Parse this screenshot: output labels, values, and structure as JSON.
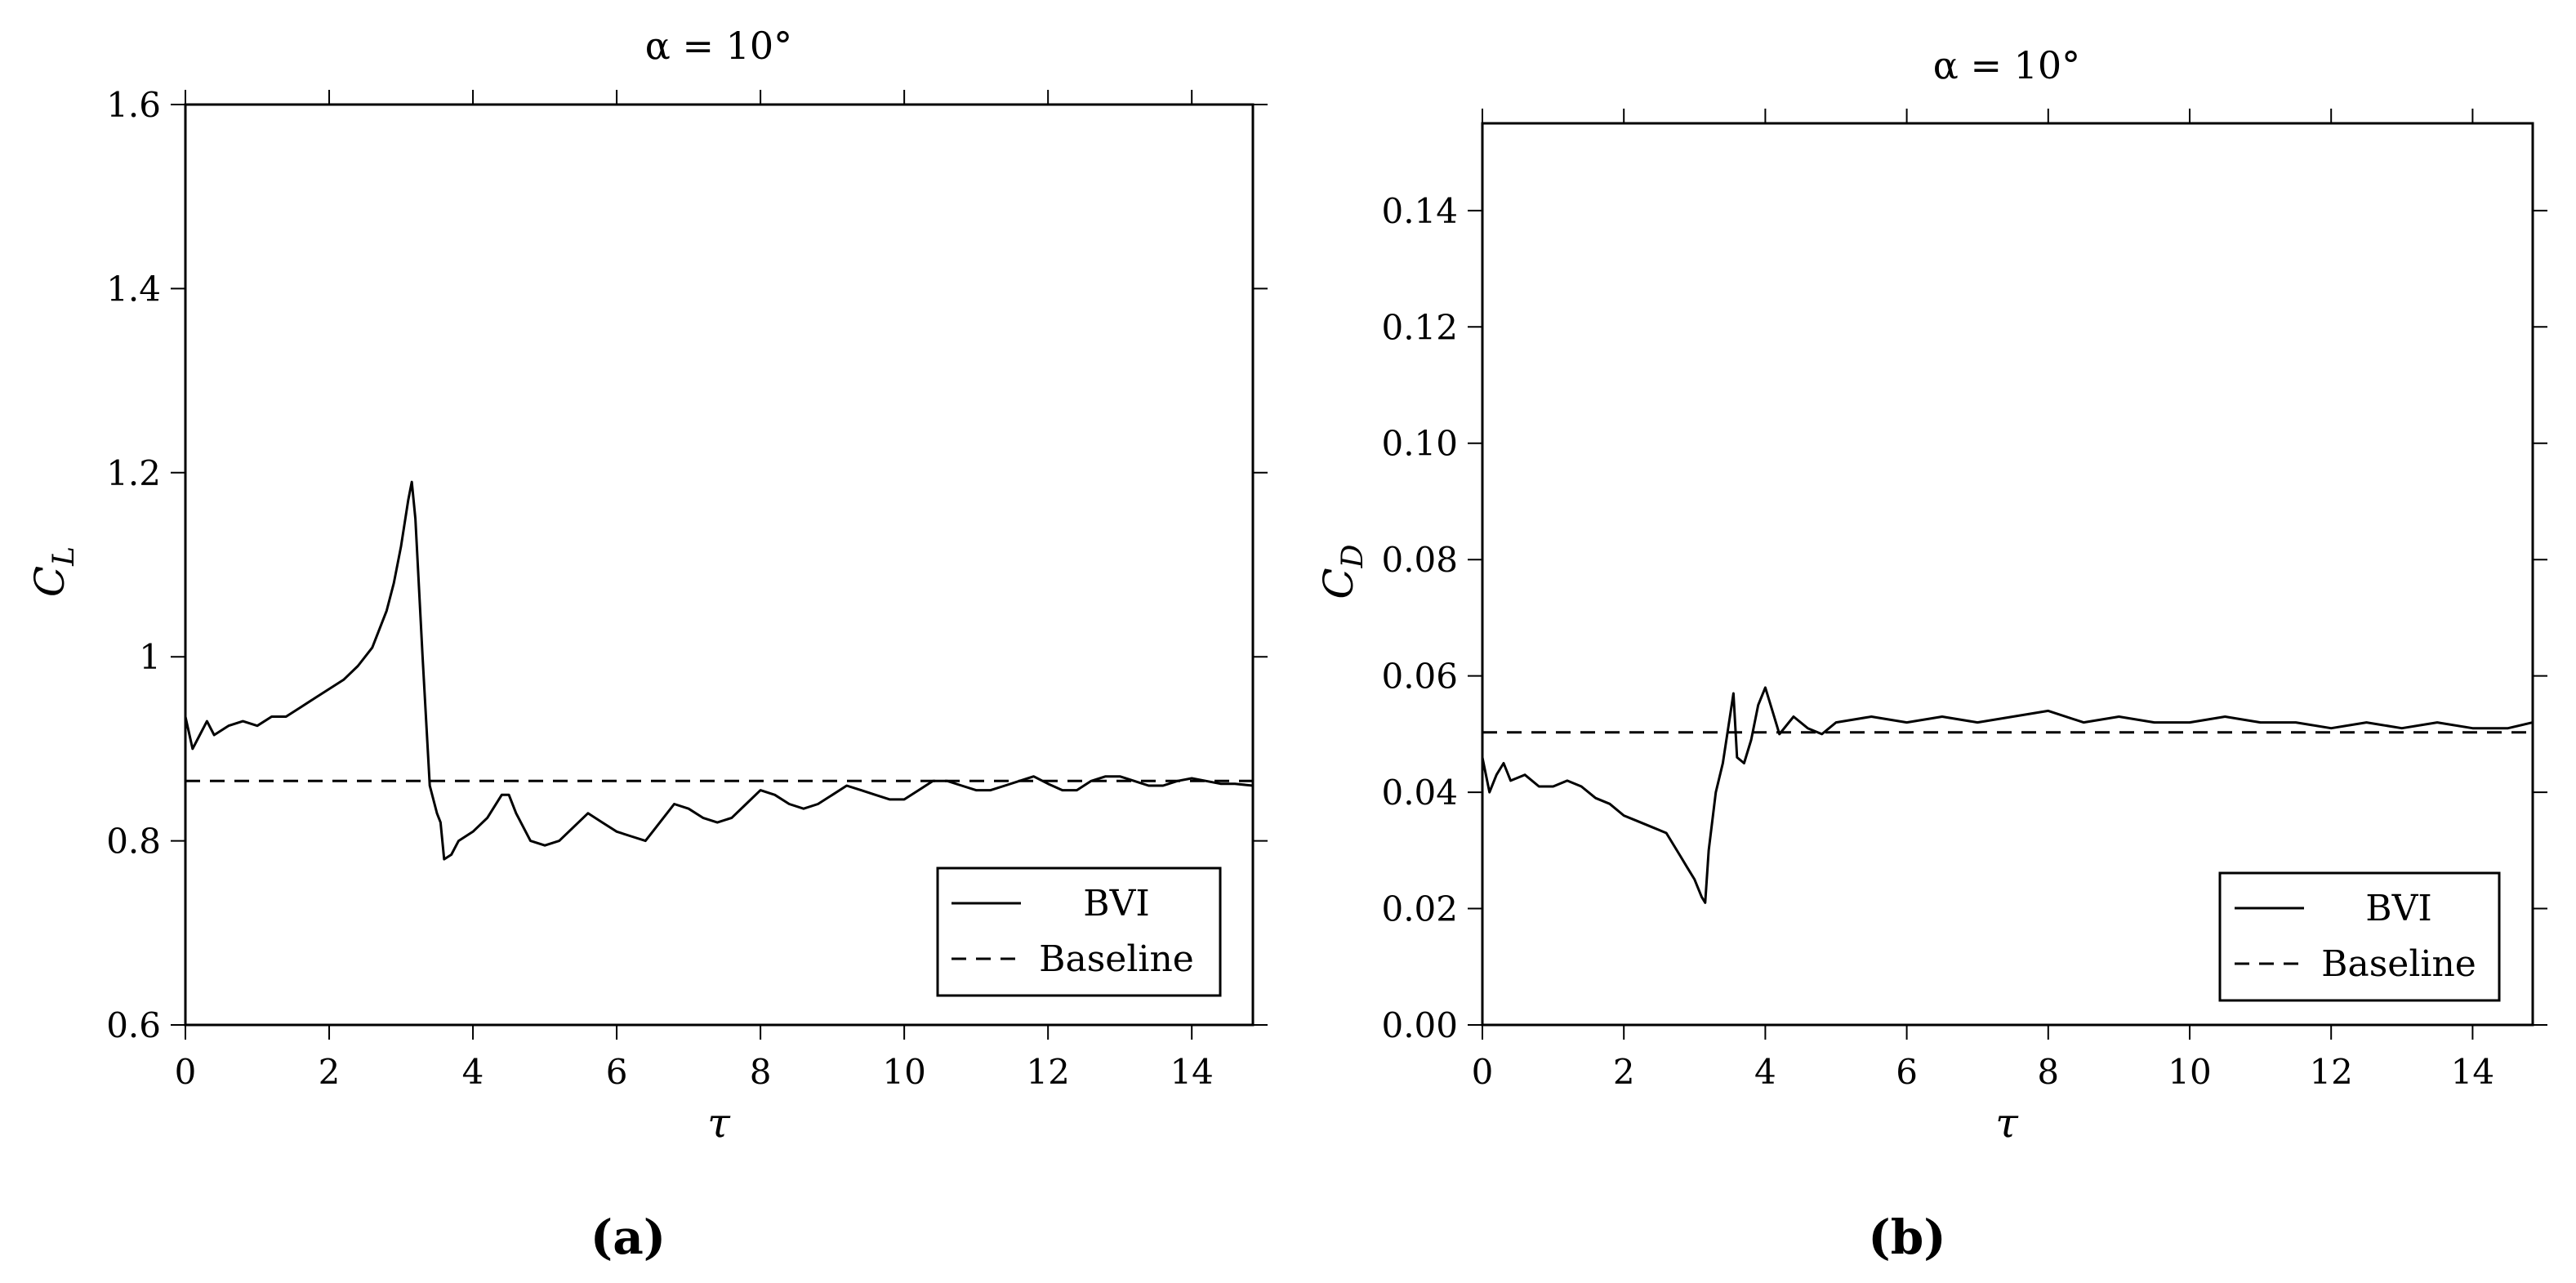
{
  "figure": {
    "panels": [
      {
        "label": "(a)"
      },
      {
        "label": "(b)"
      }
    ]
  },
  "chart_data": [
    {
      "type": "line",
      "title": "α = 10°",
      "xlabel": "τ",
      "ylabel": "C_L",
      "ylabel_main": "C",
      "ylabel_sub": "L",
      "xlim": [
        0,
        14.85
      ],
      "ylim": [
        0.6,
        1.6
      ],
      "xticks": [
        0,
        2,
        4,
        6,
        8,
        10,
        12,
        14
      ],
      "xtick_labels": [
        "0",
        "2",
        "4",
        "6",
        "8",
        "10",
        "12",
        "14"
      ],
      "yticks": [
        0.6,
        0.8,
        1.0,
        1.2,
        1.4,
        1.6
      ],
      "ytick_labels": [
        "0.6",
        "0.8",
        "1",
        "1.2",
        "1.4",
        "1.6"
      ],
      "legend_position": "bottom-right",
      "series": [
        {
          "name": "BVI",
          "style": "solid",
          "x": [
            0,
            0.1,
            0.2,
            0.3,
            0.4,
            0.5,
            0.6,
            0.8,
            1.0,
            1.2,
            1.4,
            1.6,
            1.8,
            2.0,
            2.2,
            2.4,
            2.6,
            2.8,
            2.9,
            3.0,
            3.1,
            3.15,
            3.2,
            3.3,
            3.4,
            3.5,
            3.55,
            3.6,
            3.7,
            3.8,
            4.0,
            4.2,
            4.4,
            4.5,
            4.6,
            4.8,
            5.0,
            5.2,
            5.4,
            5.6,
            5.8,
            6.0,
            6.2,
            6.4,
            6.6,
            6.8,
            7.0,
            7.2,
            7.4,
            7.6,
            7.8,
            8.0,
            8.2,
            8.4,
            8.6,
            8.8,
            9.0,
            9.2,
            9.4,
            9.6,
            9.8,
            10.0,
            10.2,
            10.4,
            10.6,
            10.8,
            11.0,
            11.2,
            11.4,
            11.6,
            11.8,
            12.0,
            12.2,
            12.4,
            12.6,
            12.8,
            13.0,
            13.2,
            13.4,
            13.6,
            13.8,
            14.0,
            14.2,
            14.4,
            14.6,
            14.85
          ],
          "y": [
            0.935,
            0.9,
            0.915,
            0.93,
            0.915,
            0.92,
            0.925,
            0.93,
            0.925,
            0.935,
            0.935,
            0.945,
            0.955,
            0.965,
            0.975,
            0.99,
            1.01,
            1.05,
            1.08,
            1.12,
            1.17,
            1.19,
            1.15,
            1.0,
            0.86,
            0.83,
            0.82,
            0.78,
            0.785,
            0.8,
            0.81,
            0.825,
            0.85,
            0.85,
            0.83,
            0.8,
            0.795,
            0.8,
            0.815,
            0.83,
            0.82,
            0.81,
            0.805,
            0.8,
            0.82,
            0.84,
            0.835,
            0.825,
            0.82,
            0.825,
            0.84,
            0.855,
            0.85,
            0.84,
            0.835,
            0.84,
            0.85,
            0.86,
            0.855,
            0.85,
            0.845,
            0.845,
            0.855,
            0.865,
            0.865,
            0.86,
            0.855,
            0.855,
            0.86,
            0.865,
            0.87,
            0.862,
            0.855,
            0.855,
            0.865,
            0.87,
            0.87,
            0.865,
            0.86,
            0.86,
            0.865,
            0.868,
            0.865,
            0.862,
            0.862,
            0.86
          ]
        },
        {
          "name": "Baseline",
          "style": "dashed",
          "x": [
            0,
            14.85
          ],
          "y": [
            0.865,
            0.865
          ]
        }
      ]
    },
    {
      "type": "line",
      "title": "α = 10°",
      "xlabel": "τ",
      "ylabel": "C_D",
      "ylabel_main": "C",
      "ylabel_sub": "D",
      "xlim": [
        0,
        14.85
      ],
      "ylim": [
        0.0,
        0.155
      ],
      "xticks": [
        0,
        2,
        4,
        6,
        8,
        10,
        12,
        14
      ],
      "xtick_labels": [
        "0",
        "2",
        "4",
        "6",
        "8",
        "10",
        "12",
        "14"
      ],
      "yticks": [
        0.0,
        0.02,
        0.04,
        0.06,
        0.08,
        0.1,
        0.12,
        0.14
      ],
      "ytick_labels": [
        "0.00",
        "0.02",
        "0.04",
        "0.06",
        "0.08",
        "0.10",
        "0.12",
        "0.14"
      ],
      "legend_position": "bottom-right",
      "series": [
        {
          "name": "BVI",
          "style": "solid",
          "x": [
            0,
            0.1,
            0.2,
            0.3,
            0.4,
            0.6,
            0.8,
            1.0,
            1.2,
            1.4,
            1.6,
            1.8,
            2.0,
            2.2,
            2.4,
            2.6,
            2.8,
            2.9,
            3.0,
            3.1,
            3.15,
            3.2,
            3.3,
            3.4,
            3.5,
            3.55,
            3.6,
            3.7,
            3.8,
            3.9,
            4.0,
            4.1,
            4.2,
            4.4,
            4.6,
            4.8,
            5.0,
            5.5,
            6.0,
            6.5,
            7.0,
            7.5,
            8.0,
            8.5,
            9.0,
            9.5,
            10.0,
            10.5,
            11.0,
            11.5,
            12.0,
            12.5,
            13.0,
            13.5,
            14.0,
            14.5,
            14.85
          ],
          "y": [
            0.046,
            0.04,
            0.043,
            0.045,
            0.042,
            0.043,
            0.041,
            0.041,
            0.042,
            0.041,
            0.039,
            0.038,
            0.036,
            0.035,
            0.034,
            0.033,
            0.029,
            0.027,
            0.025,
            0.022,
            0.021,
            0.03,
            0.04,
            0.045,
            0.053,
            0.057,
            0.046,
            0.045,
            0.049,
            0.055,
            0.058,
            0.054,
            0.05,
            0.053,
            0.051,
            0.05,
            0.052,
            0.053,
            0.052,
            0.053,
            0.052,
            0.053,
            0.054,
            0.052,
            0.053,
            0.052,
            0.052,
            0.053,
            0.052,
            0.052,
            0.051,
            0.052,
            0.051,
            0.052,
            0.051,
            0.051,
            0.052
          ]
        },
        {
          "name": "Baseline",
          "style": "dashed",
          "x": [
            0,
            14.85
          ],
          "y": [
            0.0503,
            0.0503
          ]
        }
      ]
    }
  ]
}
